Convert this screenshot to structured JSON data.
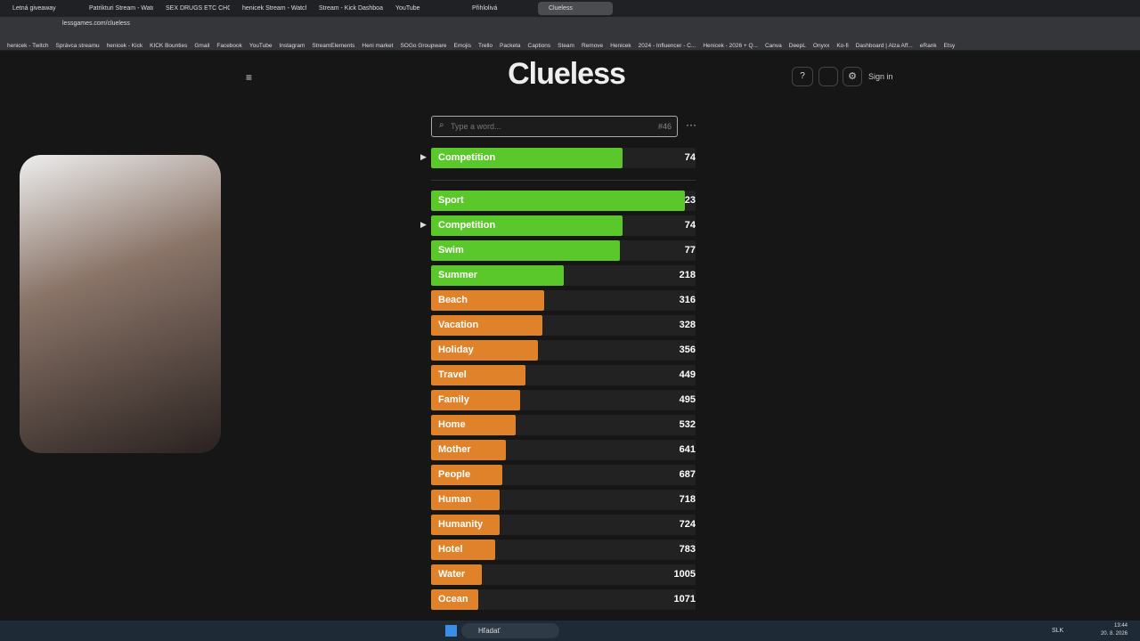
{
  "browser": {
    "tabs": [
      "Letná giveaway",
      "Patrikturi Stream - Watch",
      "SEX DRUGS ETC CHORDS",
      "henicek Stream - Watch L",
      "Stream - Kick Dashboard",
      "YouTube",
      "Přihlolivá",
      "Clueless"
    ],
    "url": "lessgames.com/clueless",
    "bookmarks": [
      "henicek - Twitch",
      "Správca streamu",
      "henicek - Kick",
      "KICK Bounties",
      "Gmail",
      "Facebook",
      "YouTube",
      "Instagram",
      "StreamElements",
      "Heni market",
      "SOGo Groupware",
      "Emojis",
      "Trello",
      "Packeta",
      "Captions",
      "Steam",
      "Remove",
      "Henicek",
      "2024 - Influencer - C...",
      "Henicek - 2026 + Q...",
      "Canva",
      "DeepL",
      "Onyxx",
      "Ko-fi",
      "Dashboard | Alza Aff...",
      "eRank",
      "Etsy"
    ]
  },
  "game": {
    "title": "Clueless",
    "sign_in": "Sign in",
    "placeholder": "Type a word...",
    "number": "#46",
    "help": "?",
    "last_guess": {
      "word": "Competition",
      "rank": 74,
      "color": "#5ac82a"
    },
    "guesses": [
      {
        "word": "Sport",
        "rank": 23,
        "color": "#5ac82a"
      },
      {
        "word": "Competition",
        "rank": 74,
        "color": "#5ac82a"
      },
      {
        "word": "Swim",
        "rank": 77,
        "color": "#5ac82a"
      },
      {
        "word": "Summer",
        "rank": 218,
        "color": "#5ac82a"
      },
      {
        "word": "Beach",
        "rank": 316,
        "color": "#e0822a"
      },
      {
        "word": "Vacation",
        "rank": 328,
        "color": "#e0822a"
      },
      {
        "word": "Holiday",
        "rank": 356,
        "color": "#e0822a"
      },
      {
        "word": "Travel",
        "rank": 449,
        "color": "#e0822a"
      },
      {
        "word": "Family",
        "rank": 495,
        "color": "#e0822a"
      },
      {
        "word": "Home",
        "rank": 532,
        "color": "#e0822a"
      },
      {
        "word": "Mother",
        "rank": 641,
        "color": "#e0822a"
      },
      {
        "word": "People",
        "rank": 687,
        "color": "#e0822a"
      },
      {
        "word": "Human",
        "rank": 718,
        "color": "#e0822a"
      },
      {
        "word": "Humanity",
        "rank": 724,
        "color": "#e0822a"
      },
      {
        "word": "Hotel",
        "rank": 783,
        "color": "#e0822a"
      },
      {
        "word": "Water",
        "rank": 1005,
        "color": "#e0822a"
      },
      {
        "word": "Ocean",
        "rank": 1071,
        "color": "#e0822a"
      }
    ]
  },
  "taskbar": {
    "search": "Hľadať",
    "lang": "SLK",
    "time": "13:44",
    "date": "20. 8. 2026"
  }
}
